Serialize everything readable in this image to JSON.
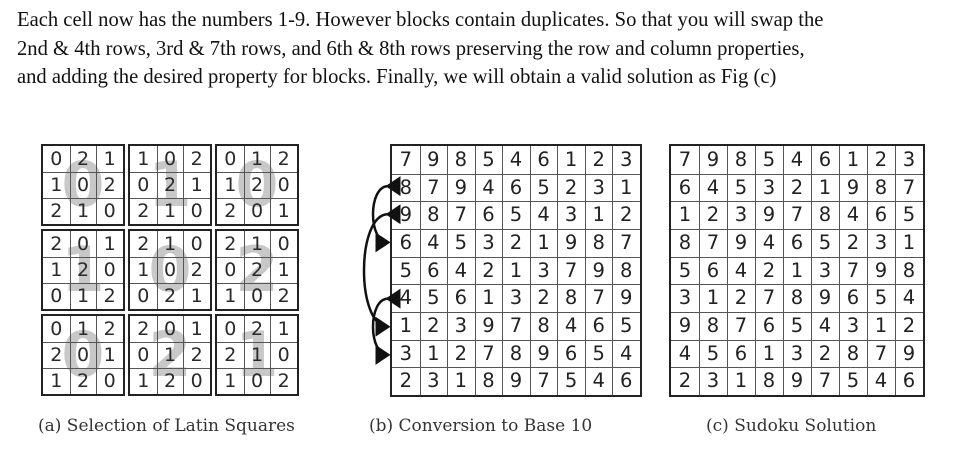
{
  "paragraph": {
    "line1": "Each cell now has the numbers 1-9. However blocks contain duplicates. So that you will swap the",
    "line2": "2nd & 4th rows, 3rd & 7th rows, and 6th & 8th rows preserving the row and column properties,",
    "line3": "and adding the desired property for blocks. Finally, we will obtain a valid solution as Fig (c)"
  },
  "figure_a": {
    "caption": "(a) Selection of Latin Squares",
    "ghost_digits": [
      [
        "0",
        "1",
        "0"
      ],
      [
        "1",
        "0",
        "2"
      ],
      [
        "0",
        "2",
        "1"
      ]
    ],
    "blocks": [
      [
        [
          [
            "0",
            "2",
            "1"
          ],
          [
            "1",
            "0",
            "2"
          ],
          [
            "2",
            "1",
            "0"
          ]
        ],
        [
          [
            "1",
            "0",
            "2"
          ],
          [
            "0",
            "2",
            "1"
          ],
          [
            "2",
            "1",
            "0"
          ]
        ],
        [
          [
            "0",
            "1",
            "2"
          ],
          [
            "1",
            "2",
            "0"
          ],
          [
            "2",
            "0",
            "1"
          ]
        ]
      ],
      [
        [
          [
            "2",
            "0",
            "1"
          ],
          [
            "1",
            "2",
            "0"
          ],
          [
            "0",
            "1",
            "2"
          ]
        ],
        [
          [
            "2",
            "1",
            "0"
          ],
          [
            "1",
            "0",
            "2"
          ],
          [
            "0",
            "2",
            "1"
          ]
        ],
        [
          [
            "2",
            "1",
            "0"
          ],
          [
            "0",
            "2",
            "1"
          ],
          [
            "1",
            "0",
            "2"
          ]
        ]
      ],
      [
        [
          [
            "0",
            "1",
            "2"
          ],
          [
            "2",
            "0",
            "1"
          ],
          [
            "1",
            "2",
            "0"
          ]
        ],
        [
          [
            "2",
            "0",
            "1"
          ],
          [
            "0",
            "1",
            "2"
          ],
          [
            "1",
            "2",
            "0"
          ]
        ],
        [
          [
            "0",
            "2",
            "1"
          ],
          [
            "2",
            "1",
            "0"
          ],
          [
            "1",
            "0",
            "2"
          ]
        ]
      ]
    ]
  },
  "figure_b": {
    "caption": "(b) Conversion to Base 10",
    "grid": [
      [
        "7",
        "9",
        "8",
        "5",
        "4",
        "6",
        "1",
        "2",
        "3"
      ],
      [
        "8",
        "7",
        "9",
        "4",
        "6",
        "5",
        "2",
        "3",
        "1"
      ],
      [
        "9",
        "8",
        "7",
        "6",
        "5",
        "4",
        "3",
        "1",
        "2"
      ],
      [
        "6",
        "4",
        "5",
        "3",
        "2",
        "1",
        "9",
        "8",
        "7"
      ],
      [
        "5",
        "6",
        "4",
        "2",
        "1",
        "3",
        "7",
        "9",
        "8"
      ],
      [
        "4",
        "5",
        "6",
        "1",
        "3",
        "2",
        "8",
        "7",
        "9"
      ],
      [
        "1",
        "2",
        "3",
        "9",
        "7",
        "8",
        "4",
        "6",
        "5"
      ],
      [
        "3",
        "1",
        "2",
        "7",
        "8",
        "9",
        "6",
        "5",
        "4"
      ],
      [
        "2",
        "3",
        "1",
        "8",
        "9",
        "7",
        "5",
        "4",
        "6"
      ]
    ],
    "swaps": [
      [
        2,
        4
      ],
      [
        3,
        7
      ],
      [
        6,
        8
      ]
    ]
  },
  "figure_c": {
    "caption": "(c) Sudoku Solution",
    "grid": [
      [
        "7",
        "9",
        "8",
        "5",
        "4",
        "6",
        "1",
        "2",
        "3"
      ],
      [
        "6",
        "4",
        "5",
        "3",
        "2",
        "1",
        "9",
        "8",
        "7"
      ],
      [
        "1",
        "2",
        "3",
        "9",
        "7",
        "8",
        "4",
        "6",
        "5"
      ],
      [
        "8",
        "7",
        "9",
        "4",
        "6",
        "5",
        "2",
        "3",
        "1"
      ],
      [
        "5",
        "6",
        "4",
        "2",
        "1",
        "3",
        "7",
        "9",
        "8"
      ],
      [
        "3",
        "1",
        "2",
        "7",
        "8",
        "9",
        "6",
        "5",
        "4"
      ],
      [
        "9",
        "8",
        "7",
        "6",
        "5",
        "4",
        "3",
        "1",
        "2"
      ],
      [
        "4",
        "5",
        "6",
        "1",
        "3",
        "2",
        "8",
        "7",
        "9"
      ],
      [
        "2",
        "3",
        "1",
        "8",
        "9",
        "7",
        "5",
        "4",
        "6"
      ]
    ]
  }
}
